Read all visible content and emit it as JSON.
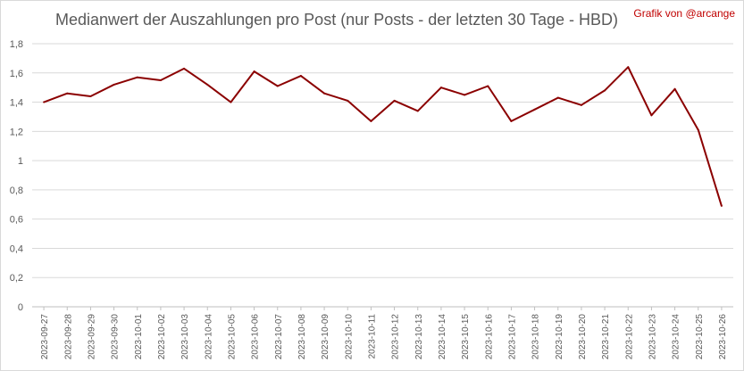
{
  "chart_data": {
    "type": "line",
    "title": "Medianwert der Auszahlungen pro Post (nur Posts - der letzten 30 Tage - HBD)",
    "credit": "Grafik von @arcange",
    "xlabel": "",
    "ylabel": "",
    "ylim": [
      0,
      1.8
    ],
    "yticks": [
      "0",
      "0,2",
      "0,4",
      "0,6",
      "0,8",
      "1",
      "1,2",
      "1,4",
      "1,6",
      "1,8"
    ],
    "ytick_values": [
      0,
      0.2,
      0.4,
      0.6,
      0.8,
      1.0,
      1.2,
      1.4,
      1.6,
      1.8
    ],
    "grid": true,
    "legend": "none",
    "line_color": "#8b0000",
    "categories": [
      "2023-09-27",
      "2023-09-28",
      "2023-09-29",
      "2023-09-30",
      "2023-10-01",
      "2023-10-02",
      "2023-10-03",
      "2023-10-04",
      "2023-10-05",
      "2023-10-06",
      "2023-10-07",
      "2023-10-08",
      "2023-10-09",
      "2023-10-10",
      "2023-10-11",
      "2023-10-12",
      "2023-10-13",
      "2023-10-14",
      "2023-10-15",
      "2023-10-16",
      "2023-10-17",
      "2023-10-18",
      "2023-10-19",
      "2023-10-20",
      "2023-10-21",
      "2023-10-22",
      "2023-10-23",
      "2023-10-24",
      "2023-10-25",
      "2023-10-26"
    ],
    "series": [
      {
        "values": [
          1.4,
          1.46,
          1.44,
          1.52,
          1.57,
          1.55,
          1.63,
          1.52,
          1.4,
          1.61,
          1.51,
          1.58,
          1.46,
          1.41,
          1.27,
          1.41,
          1.34,
          1.5,
          1.45,
          1.51,
          1.27,
          1.35,
          1.43,
          1.38,
          1.48,
          1.64,
          1.31,
          1.49,
          1.21,
          0.69
        ]
      }
    ]
  }
}
